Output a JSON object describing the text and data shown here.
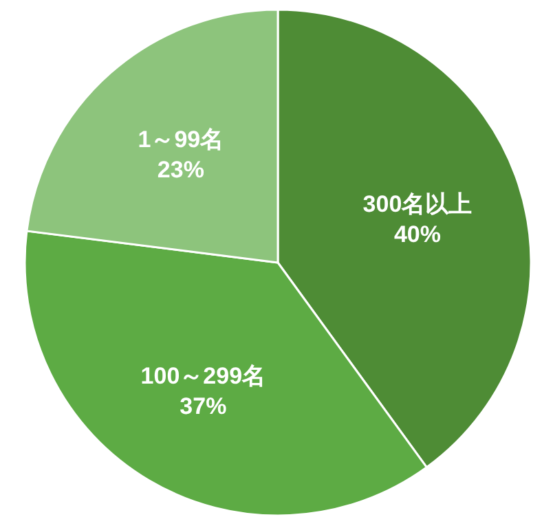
{
  "chart_data": {
    "type": "pie",
    "categories": [
      "300名以上",
      "100～299名",
      "1～99名"
    ],
    "values": [
      40,
      37,
      23
    ],
    "colors": [
      "#4e8c35",
      "#5dab44",
      "#8dc47c"
    ],
    "value_labels": [
      "40%",
      "37%",
      "23%"
    ]
  }
}
